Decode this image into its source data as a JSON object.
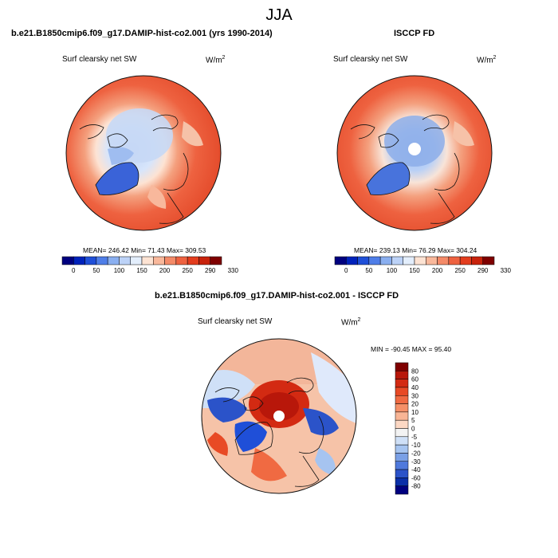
{
  "season": "JJA",
  "panels": [
    {
      "title": "b.e21.B1850cmip6.f09_g17.DAMIP-hist-co2.001 (yrs 1990-2014)",
      "subtitle": "Surf clearsky net SW",
      "units": "W/m",
      "units_exp": "2",
      "stats": "MEAN= 246.42  Min=  71.43  Max= 309.53"
    },
    {
      "title": "ISCCP FD",
      "subtitle": "Surf clearsky net SW",
      "units": "W/m",
      "units_exp": "2",
      "stats": "MEAN= 239.13  Min=  76.29  Max= 304.24"
    },
    {
      "title": "b.e21.B1850cmip6.f09_g17.DAMIP-hist-co2.001 - ISCCP FD",
      "subtitle": "Surf clearsky net SW",
      "units": "W/m",
      "units_exp": "2",
      "stats": "MIN = -90.45 MAX =  95.40"
    }
  ],
  "colorbar_abs": {
    "labels": [
      "0",
      "50",
      "100",
      "150",
      "200",
      "250",
      "290",
      "330"
    ],
    "colors": [
      "#00007f",
      "#0022bb",
      "#1f4fd8",
      "#4f7ee8",
      "#8aaff0",
      "#bcd2f7",
      "#e3eefc",
      "#fde3d3",
      "#f9b89b",
      "#f48a68",
      "#ee6240",
      "#e33d1e",
      "#c8230c",
      "#7f0000"
    ]
  },
  "colorbar_diff": {
    "labels": [
      "80",
      "60",
      "40",
      "30",
      "20",
      "10",
      "5",
      "0",
      "-5",
      "-10",
      "-20",
      "-30",
      "-40",
      "-60",
      "-80"
    ],
    "colors": [
      "#7f0000",
      "#b8170a",
      "#d32a12",
      "#e84a25",
      "#f06a42",
      "#f59068",
      "#f9b595",
      "#fcd8c4",
      "#f3f3f3",
      "#cfe0f7",
      "#a6c4f0",
      "#7aa0e6",
      "#4f79dc",
      "#2b53c9",
      "#0a2fa8",
      "#00007f"
    ]
  }
}
